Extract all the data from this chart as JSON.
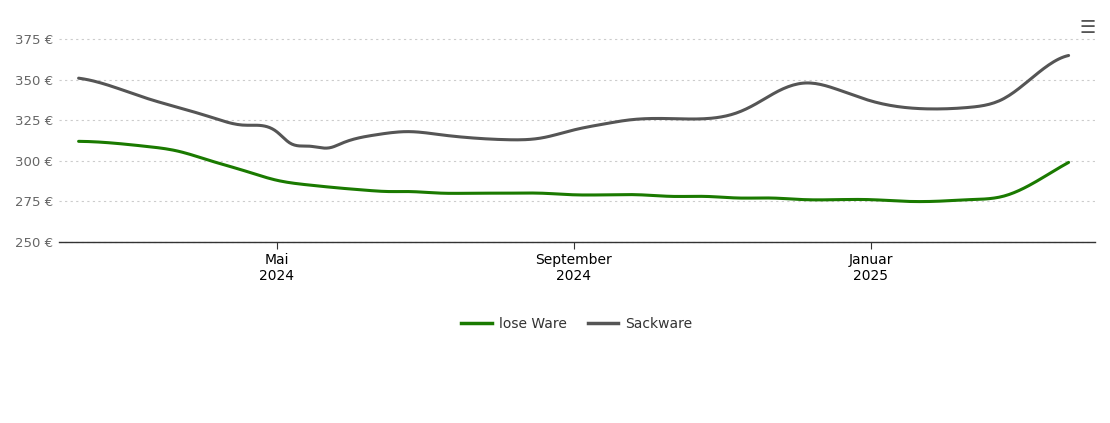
{
  "background_color": "#ffffff",
  "grid_color": "#cccccc",
  "y_ticks": [
    250,
    275,
    300,
    325,
    350,
    375
  ],
  "y_tick_labels": [
    "250 €",
    "275 €",
    "300 €",
    "325 €",
    "350 €",
    "375 €"
  ],
  "ylim": [
    243,
    390
  ],
  "legend_labels": [
    "lose Ware",
    "Sackware"
  ],
  "legend_colors": [
    "#1a7a00",
    "#555555"
  ],
  "line_width": 2.2,
  "lose_ware_x": [
    0,
    0.5,
    1,
    1.5,
    2,
    2.5,
    3,
    3.5,
    4,
    4.3,
    4.7,
    5,
    5.5,
    6,
    6.5,
    7,
    7.5,
    8,
    8.5,
    9,
    9.5,
    10,
    10.5,
    11,
    11.5,
    12,
    12.5,
    13,
    13.5,
    14,
    14.5,
    15
  ],
  "lose_ware_y": [
    312,
    311,
    309,
    306,
    300,
    294,
    288,
    285,
    283,
    282,
    281,
    281,
    280,
    280,
    280,
    280,
    279,
    279,
    279,
    278,
    278,
    277,
    277,
    276,
    276,
    276,
    275,
    275,
    276,
    278,
    287,
    299
  ],
  "sackware_x": [
    0,
    0.5,
    1,
    1.5,
    2,
    2.5,
    3,
    3.2,
    3.5,
    3.8,
    4,
    4.5,
    5,
    5.5,
    6,
    6.5,
    7,
    7.5,
    8,
    8.3,
    8.6,
    9,
    9.5,
    10,
    10.3,
    10.6,
    11,
    11.5,
    12,
    12.5,
    13,
    13.5,
    14,
    14.5,
    15
  ],
  "sackware_y": [
    351,
    346,
    339,
    333,
    327,
    322,
    318,
    311,
    309,
    308,
    311,
    316,
    318,
    316,
    314,
    313,
    314,
    319,
    323,
    325,
    326,
    326,
    326,
    330,
    336,
    343,
    348,
    344,
    337,
    333,
    332,
    333,
    338,
    353,
    365
  ],
  "xlim": [
    -0.3,
    15.4
  ],
  "x_ticks": [
    3.0,
    7.5,
    12.0
  ],
  "x_tick_labels": [
    "Mai\n2024",
    "September\n2024",
    "Januar\n2025"
  ]
}
